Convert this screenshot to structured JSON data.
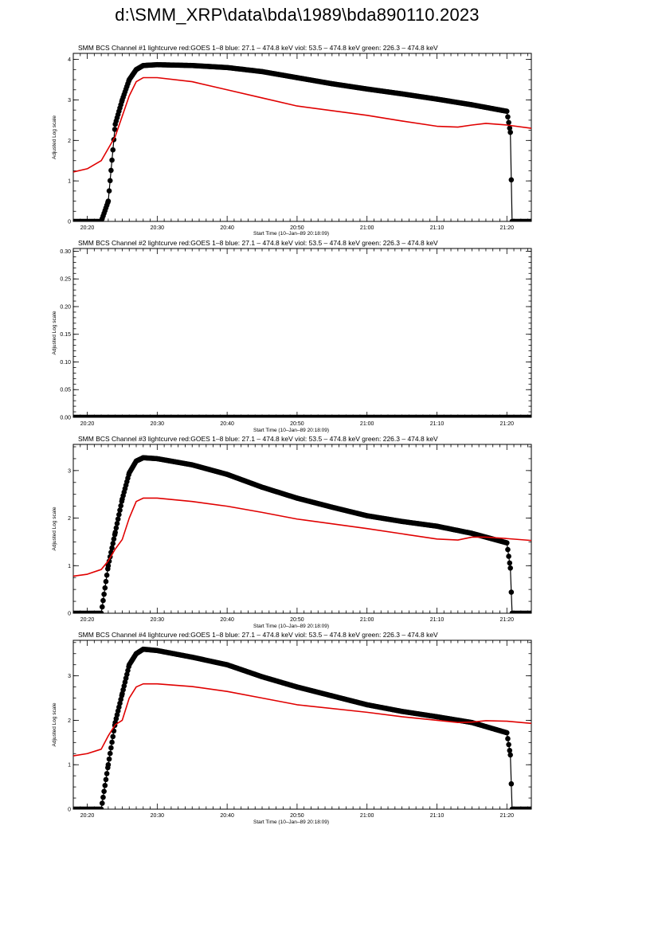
{
  "page": {
    "title": "d:\\SMM_XRP\\data\\bda\\1989\\bda890110.2023"
  },
  "chart_data": [
    {
      "type": "line",
      "title": "SMM BCS Channel #1 lightcurve  red:GOES 1–8  blue: 27.1 – 474.8 keV  viol: 53.5 – 474.8 keV  green: 226.3 – 474.8 keV",
      "xlabel": "Start Time (10–Jan–89 20:18:09)",
      "ylabel": "Adjusted Log scale",
      "xlim": [
        "20:18:00",
        "21:23:30"
      ],
      "ylim": [
        0,
        4.15
      ],
      "x_ticks": [
        "20:20",
        "20:30",
        "20:40",
        "20:50",
        "21:00",
        "21:10",
        "21:20"
      ],
      "y_ticks": [
        "0",
        "1",
        "2",
        "3",
        "4"
      ],
      "y_minor_step": 0.25,
      "series": [
        {
          "color": "#000000",
          "marker": "circle",
          "x": [
            "20:18:00",
            "20:22:00",
            "20:23:00",
            "20:24:00",
            "20:25:00",
            "20:26:00",
            "20:27:00",
            "20:28:00",
            "20:30:00",
            "20:35:00",
            "20:40:00",
            "20:45:00",
            "20:50:00",
            "20:55:00",
            "21:00:00",
            "21:05:00",
            "21:10:00",
            "21:15:00",
            "21:20:00",
            "21:20:30",
            "21:20:45",
            "21:23:30"
          ],
          "y": [
            0,
            0,
            0.5,
            2.4,
            3.0,
            3.5,
            3.75,
            3.85,
            3.87,
            3.85,
            3.8,
            3.7,
            3.55,
            3.4,
            3.27,
            3.15,
            3.02,
            2.88,
            2.72,
            2.2,
            0,
            0
          ]
        },
        {
          "color": "#e00000",
          "marker": "none",
          "x": [
            "20:18:00",
            "20:20:00",
            "20:22:00",
            "20:23:00",
            "20:24:00",
            "20:25:00",
            "20:26:00",
            "20:27:00",
            "20:28:00",
            "20:30:00",
            "20:35:00",
            "20:40:00",
            "20:45:00",
            "20:50:00",
            "21:00:00",
            "21:05:00",
            "21:10:00",
            "21:13:00",
            "21:15:00",
            "21:17:00",
            "21:20:00",
            "21:23:30"
          ],
          "y": [
            1.22,
            1.3,
            1.5,
            1.8,
            2.1,
            2.6,
            3.1,
            3.45,
            3.55,
            3.55,
            3.45,
            3.25,
            3.05,
            2.85,
            2.62,
            2.48,
            2.35,
            2.33,
            2.38,
            2.42,
            2.38,
            2.3
          ]
        }
      ]
    },
    {
      "type": "line",
      "title": "SMM BCS Channel #2 lightcurve  red:GOES 1–8  blue: 27.1 – 474.8 keV  viol: 53.5 – 474.8 keV  green: 226.3 – 474.8 keV",
      "xlabel": "Start Time (10–Jan–89 20:18:09)",
      "ylabel": "Adjusted Log scale",
      "xlim": [
        "20:18:00",
        "21:23:30"
      ],
      "ylim": [
        0,
        0.305
      ],
      "x_ticks": [
        "20:20",
        "20:30",
        "20:40",
        "20:50",
        "21:00",
        "21:10",
        "21:20"
      ],
      "y_ticks": [
        "0.00",
        "0.05",
        "0.10",
        "0.15",
        "0.20",
        "0.25",
        "0.30"
      ],
      "y_minor_step": 0.01,
      "series": [
        {
          "color": "#000000",
          "marker": "circle",
          "x": [
            "20:18:00",
            "21:23:30"
          ],
          "y": [
            0,
            0
          ]
        }
      ]
    },
    {
      "type": "line",
      "title": "SMM BCS Channel #3 lightcurve  red:GOES 1–8  blue: 27.1 – 474.8 keV  viol: 53.5 – 474.8 keV  green: 226.3 – 474.8 keV",
      "xlabel": "Start Time (10–Jan–89 20:18:09)",
      "ylabel": "Adjusted Log scale",
      "xlim": [
        "20:18:00",
        "21:23:30"
      ],
      "ylim": [
        0,
        3.55
      ],
      "x_ticks": [
        "20:20",
        "20:30",
        "20:40",
        "20:50",
        "21:00",
        "21:10",
        "21:20"
      ],
      "y_ticks": [
        "0",
        "1",
        "2",
        "3"
      ],
      "y_minor_step": 0.25,
      "series": [
        {
          "color": "#000000",
          "marker": "circle",
          "x": [
            "20:18:00",
            "20:22:00",
            "20:23:00",
            "20:24:00",
            "20:25:00",
            "20:26:00",
            "20:27:00",
            "20:28:00",
            "20:30:00",
            "20:35:00",
            "20:40:00",
            "20:45:00",
            "20:50:00",
            "20:55:00",
            "21:00:00",
            "21:05:00",
            "21:10:00",
            "21:15:00",
            "21:20:00",
            "21:20:30",
            "21:20:45",
            "21:23:30"
          ],
          "y": [
            0,
            0,
            1.0,
            1.7,
            2.4,
            2.95,
            3.2,
            3.27,
            3.25,
            3.12,
            2.92,
            2.65,
            2.42,
            2.23,
            2.05,
            1.93,
            1.83,
            1.68,
            1.48,
            0.95,
            0,
            0
          ]
        },
        {
          "color": "#e00000",
          "marker": "none",
          "x": [
            "20:18:00",
            "20:20:00",
            "20:22:00",
            "20:23:00",
            "20:24:00",
            "20:25:00",
            "20:26:00",
            "20:27:00",
            "20:28:00",
            "20:30:00",
            "20:35:00",
            "20:40:00",
            "20:45:00",
            "20:50:00",
            "21:00:00",
            "21:05:00",
            "21:10:00",
            "21:13:00",
            "21:15:00",
            "21:17:00",
            "21:20:00",
            "21:23:30"
          ],
          "y": [
            0.78,
            0.82,
            0.92,
            1.1,
            1.35,
            1.55,
            2.0,
            2.35,
            2.42,
            2.42,
            2.35,
            2.25,
            2.12,
            1.98,
            1.78,
            1.67,
            1.56,
            1.54,
            1.6,
            1.6,
            1.57,
            1.53
          ]
        }
      ]
    },
    {
      "type": "line",
      "title": "SMM BCS Channel #4 lightcurve  red:GOES 1–8  blue: 27.1 – 474.8 keV  viol: 53.5 – 474.8 keV  green: 226.3 – 474.8 keV",
      "xlabel": "Start Time (10–Jan–89 20:18:09)",
      "ylabel": "Adjusted Log scale",
      "xlim": [
        "20:18:00",
        "21:23:30"
      ],
      "ylim": [
        0,
        3.8
      ],
      "x_ticks": [
        "20:20",
        "20:30",
        "20:40",
        "20:50",
        "21:00",
        "21:10",
        "21:20"
      ],
      "y_ticks": [
        "0",
        "1",
        "2",
        "3"
      ],
      "y_minor_step": 0.25,
      "series": [
        {
          "color": "#000000",
          "marker": "circle",
          "x": [
            "20:18:00",
            "20:22:00",
            "20:23:00",
            "20:24:00",
            "20:25:00",
            "20:26:00",
            "20:27:00",
            "20:28:00",
            "20:30:00",
            "20:35:00",
            "20:40:00",
            "20:45:00",
            "20:50:00",
            "20:55:00",
            "21:00:00",
            "21:05:00",
            "21:10:00",
            "21:15:00",
            "21:20:00",
            "21:20:30",
            "21:20:45",
            "21:23:30"
          ],
          "y": [
            0,
            0,
            1.0,
            1.95,
            2.6,
            3.25,
            3.5,
            3.6,
            3.57,
            3.42,
            3.25,
            2.98,
            2.75,
            2.55,
            2.35,
            2.2,
            2.08,
            1.95,
            1.72,
            1.22,
            0,
            0
          ]
        },
        {
          "color": "#e00000",
          "marker": "none",
          "x": [
            "20:18:00",
            "20:20:00",
            "20:22:00",
            "20:23:00",
            "20:24:00",
            "20:25:00",
            "20:26:00",
            "20:27:00",
            "20:28:00",
            "20:30:00",
            "20:35:00",
            "20:40:00",
            "20:45:00",
            "20:50:00",
            "21:00:00",
            "21:05:00",
            "21:10:00",
            "21:13:00",
            "21:15:00",
            "21:17:00",
            "21:20:00",
            "21:23:30"
          ],
          "y": [
            1.2,
            1.25,
            1.35,
            1.65,
            1.9,
            2.0,
            2.5,
            2.75,
            2.82,
            2.82,
            2.76,
            2.65,
            2.5,
            2.35,
            2.18,
            2.08,
            2.0,
            1.95,
            1.96,
            1.99,
            1.98,
            1.93
          ]
        }
      ]
    }
  ]
}
